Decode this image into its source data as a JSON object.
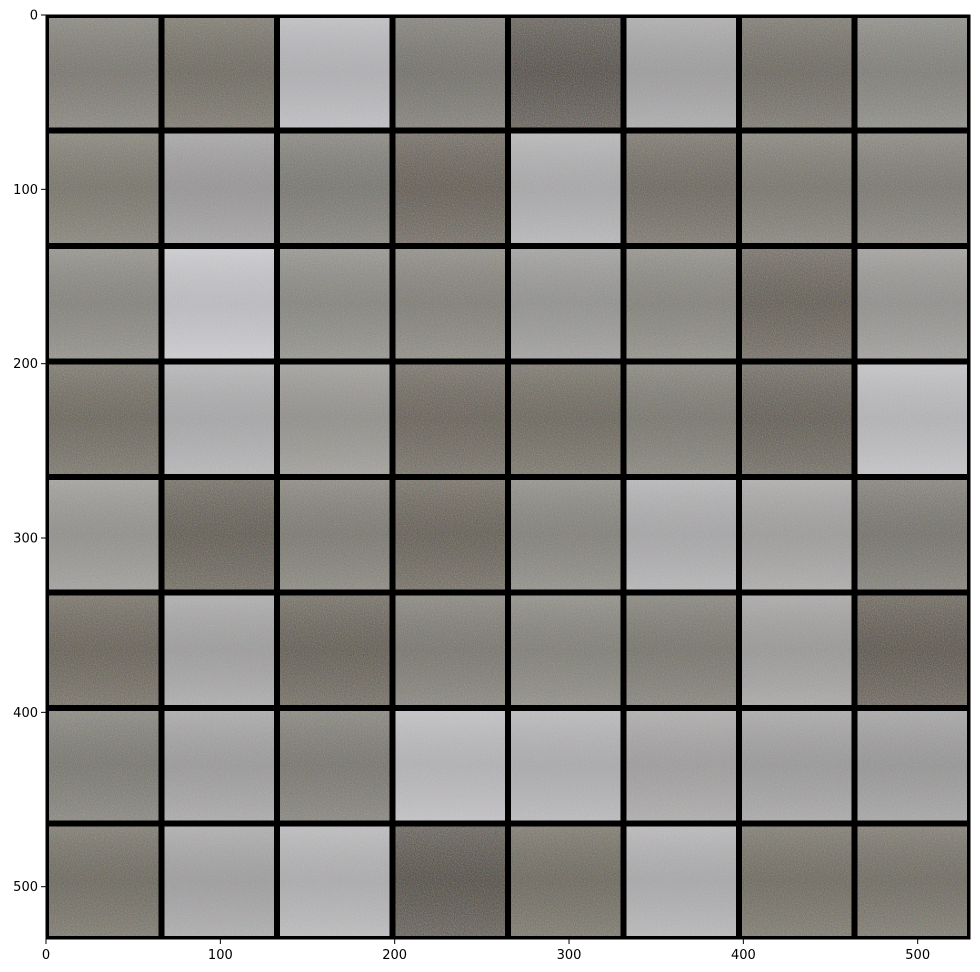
{
  "image": {
    "type": "image-grid",
    "rows": 8,
    "cols": 8,
    "grid_border_color": "#000000",
    "tile_colors": [
      [
        "#7d7a70",
        "#6f6a5c",
        "#bdbcc0",
        "#76736a",
        "#4f473b",
        "#a8a7a8",
        "#6e695d",
        "#84837c"
      ],
      [
        "#7a7769",
        "#a19fa0",
        "#7c7a72",
        "#62594b",
        "#b4b3b5",
        "#6d675a",
        "#7b786c",
        "#7e7b71"
      ],
      [
        "#8a8880",
        "#cbcbcf",
        "#8c8b84",
        "#858279",
        "#9b9a98",
        "#89877e",
        "#625a4c",
        "#9a9895"
      ],
      [
        "#6b6556",
        "#b3b2b4",
        "#9a9893",
        "#675f51",
        "#6b6556",
        "#7c796e",
        "#615a4c",
        "#c2c1c4"
      ],
      [
        "#9a9894",
        "#5f5849",
        "#7f7c72",
        "#635b4c",
        "#87857d",
        "#b2b1b3",
        "#a8a6a5",
        "#77746a"
      ],
      [
        "#665e4f",
        "#a8a7a7",
        "#615a4b",
        "#7c796f",
        "#858379",
        "#7a776c",
        "#a4a2a1",
        "#584f40"
      ],
      [
        "#7c7a70",
        "#a5a4a4",
        "#7b786f",
        "#c0bfc2",
        "#b7b6b9",
        "#a9a7a7",
        "#a4a3a3",
        "#a09f9f"
      ],
      [
        "#6d6859",
        "#a9a8a9",
        "#b9b8ba",
        "#4d4536",
        "#6d6858",
        "#b5b4b6",
        "#6f6a5b",
        "#706b5d"
      ]
    ]
  },
  "axes": {
    "x_ticks": [
      {
        "value": 0,
        "label": "0"
      },
      {
        "value": 100,
        "label": "100"
      },
      {
        "value": 200,
        "label": "200"
      },
      {
        "value": 300,
        "label": "300"
      },
      {
        "value": 400,
        "label": "400"
      },
      {
        "value": 500,
        "label": "500"
      }
    ],
    "y_ticks": [
      {
        "value": 0,
        "label": "0"
      },
      {
        "value": 100,
        "label": "100"
      },
      {
        "value": 200,
        "label": "200"
      },
      {
        "value": 300,
        "label": "300"
      },
      {
        "value": 400,
        "label": "400"
      },
      {
        "value": 500,
        "label": "500"
      }
    ],
    "x_range": [
      0,
      530
    ],
    "y_range": [
      530,
      0
    ],
    "grid": false
  }
}
